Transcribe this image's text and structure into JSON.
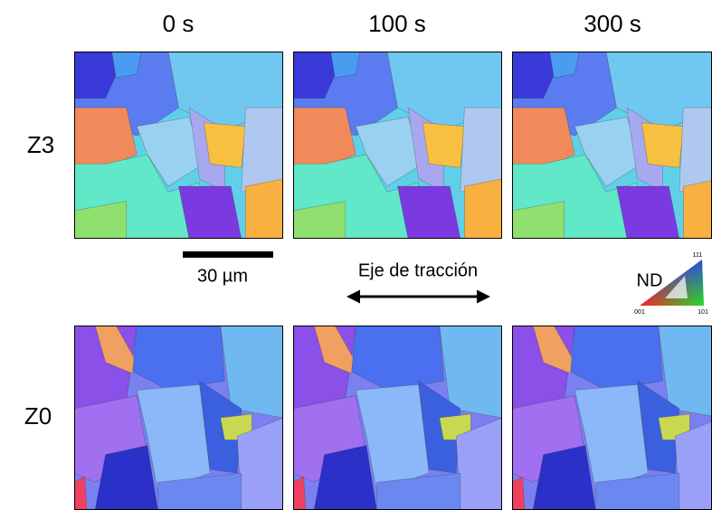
{
  "columns": [
    "0 s",
    "100 s",
    "300 s"
  ],
  "rows": [
    "Z3",
    "Z0"
  ],
  "scale_bar": "30 µm",
  "axis_label": "Eje de tracción",
  "legend": {
    "title": "ND",
    "corners": [
      "111",
      "001",
      "101"
    ]
  }
}
